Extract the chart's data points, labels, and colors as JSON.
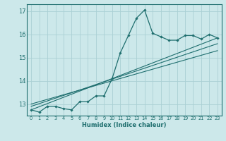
{
  "xlabel": "Humidex (Indice chaleur)",
  "bg_color": "#cce8ea",
  "grid_color": "#aad0d4",
  "line_color": "#1e6e6e",
  "xlim": [
    -0.5,
    23.5
  ],
  "ylim": [
    12.5,
    17.3
  ],
  "yticks": [
    13,
    14,
    15,
    16,
    17
  ],
  "xticks": [
    0,
    1,
    2,
    3,
    4,
    5,
    6,
    7,
    8,
    9,
    10,
    11,
    12,
    13,
    14,
    15,
    16,
    17,
    18,
    19,
    20,
    21,
    22,
    23
  ],
  "series1_x": [
    0,
    1,
    2,
    3,
    4,
    5,
    6,
    7,
    8,
    9,
    10,
    11,
    12,
    13,
    14,
    15,
    16,
    17,
    18,
    19,
    20,
    21,
    22,
    23
  ],
  "series1_y": [
    12.75,
    12.65,
    12.9,
    12.9,
    12.8,
    12.75,
    13.1,
    13.1,
    13.35,
    13.35,
    14.1,
    15.2,
    15.95,
    16.7,
    17.05,
    16.05,
    15.9,
    15.75,
    15.75,
    15.95,
    15.95,
    15.8,
    16.0,
    15.85
  ],
  "trend1_x": [
    0,
    23
  ],
  "trend1_y": [
    12.75,
    15.85
  ],
  "trend2_x": [
    0,
    23
  ],
  "trend2_y": [
    12.9,
    15.6
  ],
  "trend3_x": [
    0,
    23
  ],
  "trend3_y": [
    13.0,
    15.3
  ]
}
